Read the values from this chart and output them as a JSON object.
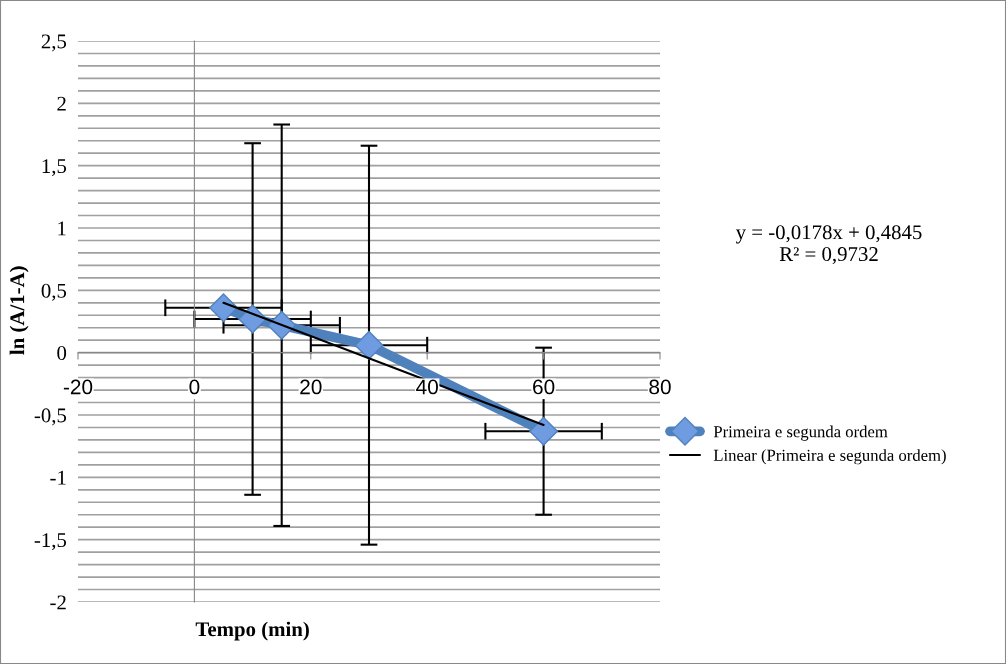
{
  "chart_data": {
    "type": "line",
    "xlabel": "Tempo (min)",
    "ylabel": "ln (A/1-A)",
    "xlim": [
      -20,
      80
    ],
    "xticks": [
      -20,
      0,
      20,
      40,
      60,
      80
    ],
    "ylim": [
      -2,
      2.5
    ],
    "yticks": [
      {
        "value": -2,
        "label": "-2"
      },
      {
        "value": -1.9,
        "label": null
      },
      {
        "value": -1.8,
        "label": null
      },
      {
        "value": -1.7,
        "label": null
      },
      {
        "value": -1.6,
        "label": null
      },
      {
        "value": -1.5,
        "label": "-1,5"
      },
      {
        "value": -1.4,
        "label": null
      },
      {
        "value": -1.3,
        "label": null
      },
      {
        "value": -1.2,
        "label": null
      },
      {
        "value": -1.1,
        "label": null
      },
      {
        "value": -1,
        "label": "-1"
      },
      {
        "value": -0.9,
        "label": null
      },
      {
        "value": -0.8,
        "label": null
      },
      {
        "value": -0.7,
        "label": null
      },
      {
        "value": -0.6,
        "label": null
      },
      {
        "value": -0.5,
        "label": "-0,5"
      },
      {
        "value": -0.4,
        "label": null
      },
      {
        "value": -0.3,
        "label": null
      },
      {
        "value": -0.2,
        "label": null
      },
      {
        "value": -0.1,
        "label": null
      },
      {
        "value": 0,
        "label": "0"
      },
      {
        "value": 0.1,
        "label": null
      },
      {
        "value": 0.2,
        "label": null
      },
      {
        "value": 0.3,
        "label": null
      },
      {
        "value": 0.4,
        "label": null
      },
      {
        "value": 0.5,
        "label": "0,5"
      },
      {
        "value": 0.6,
        "label": null
      },
      {
        "value": 0.7,
        "label": null
      },
      {
        "value": 0.8,
        "label": null
      },
      {
        "value": 0.9,
        "label": null
      },
      {
        "value": 1,
        "label": "1"
      },
      {
        "value": 1.1,
        "label": null
      },
      {
        "value": 1.2,
        "label": null
      },
      {
        "value": 1.3,
        "label": null
      },
      {
        "value": 1.4,
        "label": null
      },
      {
        "value": 1.5,
        "label": "1,5"
      },
      {
        "value": 1.6,
        "label": null
      },
      {
        "value": 1.7,
        "label": null
      },
      {
        "value": 1.8,
        "label": null
      },
      {
        "value": 1.9,
        "label": null
      },
      {
        "value": 2,
        "label": "2"
      },
      {
        "value": 2.1,
        "label": null
      },
      {
        "value": 2.2,
        "label": null
      },
      {
        "value": 2.3,
        "label": null
      },
      {
        "value": 2.4,
        "label": null
      },
      {
        "value": 2.5,
        "label": "2,5"
      }
    ],
    "grid": "y",
    "legend": "right",
    "marker": "diamond",
    "series": [
      {
        "name": "Primeira e segunda ordem",
        "color": "#4f81bd",
        "x": [
          5,
          10,
          15,
          30,
          60
        ],
        "values": [
          0.36,
          0.27,
          0.22,
          0.06,
          -0.63
        ],
        "errors": [
          null,
          1.41,
          1.61,
          1.6,
          0.67
        ],
        "xerrors": [
          10,
          10,
          10,
          10,
          10
        ]
      },
      {
        "name": "Linear (Primeira e segunda ordem)",
        "color": "#000000",
        "type": "line",
        "marker": "none",
        "x": [
          5,
          60
        ],
        "values": [
          0.4,
          -0.58
        ]
      }
    ],
    "annotations": [
      "y = -0,0178x + 0,4845\nR² = 0,9732"
    ]
  }
}
